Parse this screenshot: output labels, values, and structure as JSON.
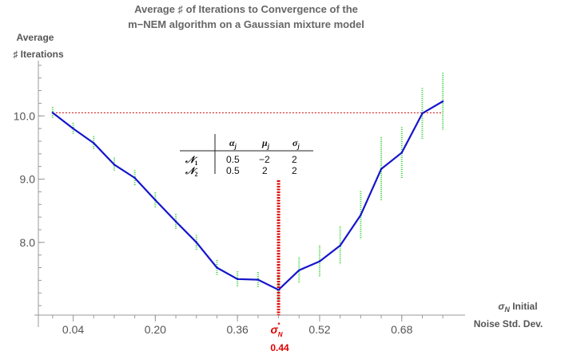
{
  "chart_data": {
    "type": "line",
    "title_lines": [
      "Average ♯ of Iterations to Convergence of the",
      "m−NEM algorithm on a Gaussian mixture model"
    ],
    "ylabel_lines": [
      "Average",
      "♯ Iterations"
    ],
    "xlabel_lines": [
      "σN Initial",
      "Noise Std. Dev."
    ],
    "x_ticks": [
      0.04,
      0.2,
      0.36,
      0.52,
      0.68
    ],
    "x_tick_labels": [
      "0.04",
      "0.20",
      "0.36",
      "0.52",
      "0.68"
    ],
    "y_ticks": [
      8.0,
      9.0,
      10.0
    ],
    "y_tick_labels": [
      "8.0",
      "9.0",
      "10.0"
    ],
    "xlim": [
      -0.02,
      0.78
    ],
    "ylim": [
      6.85,
      11.0
    ],
    "series": [
      {
        "color": "#1515cc",
        "x": [
          0.0,
          0.04,
          0.08,
          0.12,
          0.16,
          0.2,
          0.24,
          0.28,
          0.32,
          0.36,
          0.4,
          0.44,
          0.48,
          0.52,
          0.56,
          0.6,
          0.64,
          0.68,
          0.72,
          0.76
        ],
        "y": [
          10.05,
          9.8,
          9.57,
          9.23,
          9.02,
          8.67,
          8.33,
          8.0,
          7.6,
          7.42,
          7.41,
          7.25,
          7.56,
          7.7,
          7.95,
          8.43,
          9.16,
          9.42,
          10.04,
          10.23
        ],
        "error": [
          0.09,
          0.09,
          0.11,
          0.11,
          0.12,
          0.12,
          0.12,
          0.12,
          0.12,
          0.12,
          0.12,
          0.2,
          0.2,
          0.25,
          0.3,
          0.38,
          0.5,
          0.4,
          0.4,
          0.45
        ]
      }
    ],
    "reference_line": {
      "y": 10.05,
      "color": "#cc0000"
    },
    "optimum": {
      "x": 0.44,
      "label_sigma": "σN*",
      "value_label": "0.44",
      "color": "#dd0000"
    },
    "errorbar_color": "#33cc33",
    "inset_table": {
      "headers": [
        "αj",
        "μj",
        "σj"
      ],
      "rows": [
        {
          "name": "N1",
          "values": [
            "0.5",
            "−2",
            "2"
          ]
        },
        {
          "name": "N2",
          "values": [
            "0.5",
            "2",
            "2"
          ]
        }
      ]
    }
  }
}
